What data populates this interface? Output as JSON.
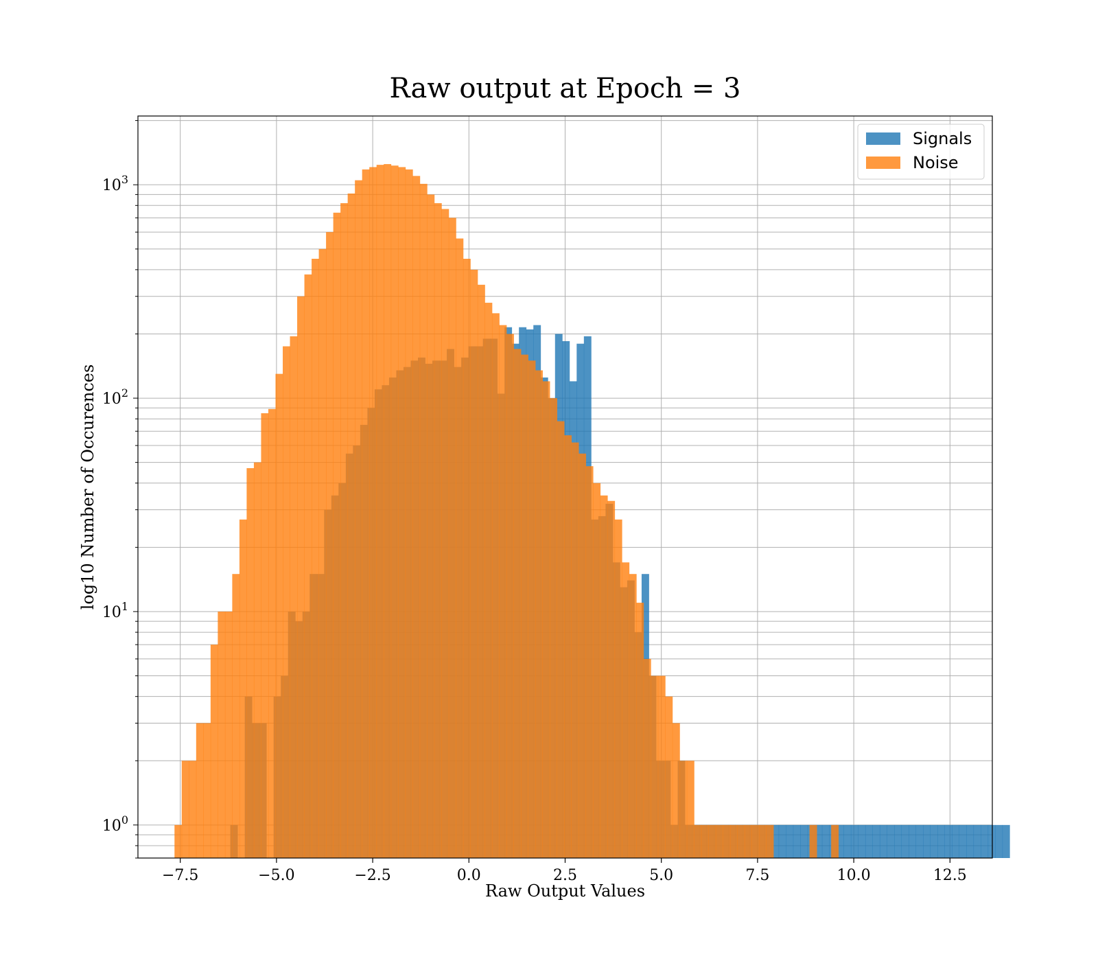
{
  "chart_data": {
    "type": "bar",
    "title": "Raw output at Epoch = 3",
    "xlabel": "Raw Output Values",
    "ylabel": "log10 Number of Occurences",
    "xlim": [
      -8.6,
      13.6
    ],
    "ylim": [
      0.7,
      2100
    ],
    "yscale": "log",
    "grid": true,
    "legend_position": "top-right",
    "x_ticks": [
      -7.5,
      -5.0,
      -2.5,
      0.0,
      2.5,
      5.0,
      7.5,
      10.0,
      12.5
    ],
    "x_tick_labels": [
      "−7.5",
      "−5.0",
      "−2.5",
      "0.0",
      "2.5",
      "5.0",
      "7.5",
      "10.0",
      "12.5"
    ],
    "y_ticks": [
      1,
      10,
      100,
      1000
    ],
    "y_tick_base": "10",
    "y_tick_exponents": [
      "0",
      "1",
      "2",
      "3"
    ],
    "series": [
      {
        "name": "Signals",
        "color": "#1f77b4",
        "opacity": 0.8,
        "bin_start": -6.2,
        "bin_width": 0.1875,
        "values": [
          1,
          0,
          4,
          3,
          3,
          0,
          4,
          5,
          10,
          9,
          10,
          15,
          15,
          30,
          35,
          40,
          55,
          60,
          75,
          90,
          110,
          115,
          125,
          135,
          140,
          150,
          155,
          145,
          150,
          150,
          170,
          140,
          155,
          175,
          175,
          190,
          190,
          105,
          215,
          180,
          215,
          210,
          220,
          125,
          100,
          200,
          185,
          120,
          180,
          195,
          27,
          28,
          32,
          17,
          13,
          14,
          8,
          15,
          5,
          2,
          2,
          1,
          2,
          1,
          1,
          1,
          1,
          1,
          1,
          1,
          1,
          1,
          1,
          1,
          1,
          1,
          1,
          1,
          1,
          1,
          1,
          1,
          1,
          1,
          1,
          1,
          1,
          1,
          1,
          1,
          1,
          1,
          1,
          1,
          1,
          1,
          1,
          1,
          1,
          1,
          1,
          1,
          1,
          1,
          1,
          1,
          1,
          1
        ]
      },
      {
        "name": "Noise",
        "color": "#ff7f0e",
        "opacity": 0.8,
        "bin_start": -7.65,
        "bin_width": 0.1875,
        "values": [
          1,
          2,
          2,
          3,
          3,
          7,
          10,
          10,
          15,
          27,
          47,
          50,
          85,
          89,
          130,
          175,
          195,
          300,
          380,
          450,
          500,
          600,
          740,
          820,
          910,
          1050,
          1180,
          1210,
          1240,
          1250,
          1230,
          1210,
          1180,
          1100,
          1010,
          900,
          820,
          770,
          700,
          560,
          450,
          400,
          340,
          280,
          250,
          220,
          200,
          170,
          160,
          150,
          135,
          120,
          100,
          78,
          67,
          62,
          55,
          48,
          40,
          35,
          33,
          27,
          17,
          15,
          11,
          6,
          5,
          5,
          4,
          3,
          2,
          2,
          1,
          1,
          1,
          1,
          1,
          1,
          1,
          1,
          1,
          1,
          1,
          0,
          0,
          0,
          0,
          0,
          1,
          0,
          0,
          1,
          0,
          0,
          0,
          0,
          0,
          0,
          0,
          0,
          0,
          0,
          0,
          0,
          0,
          0,
          0,
          0,
          0,
          0,
          0
        ]
      }
    ]
  }
}
